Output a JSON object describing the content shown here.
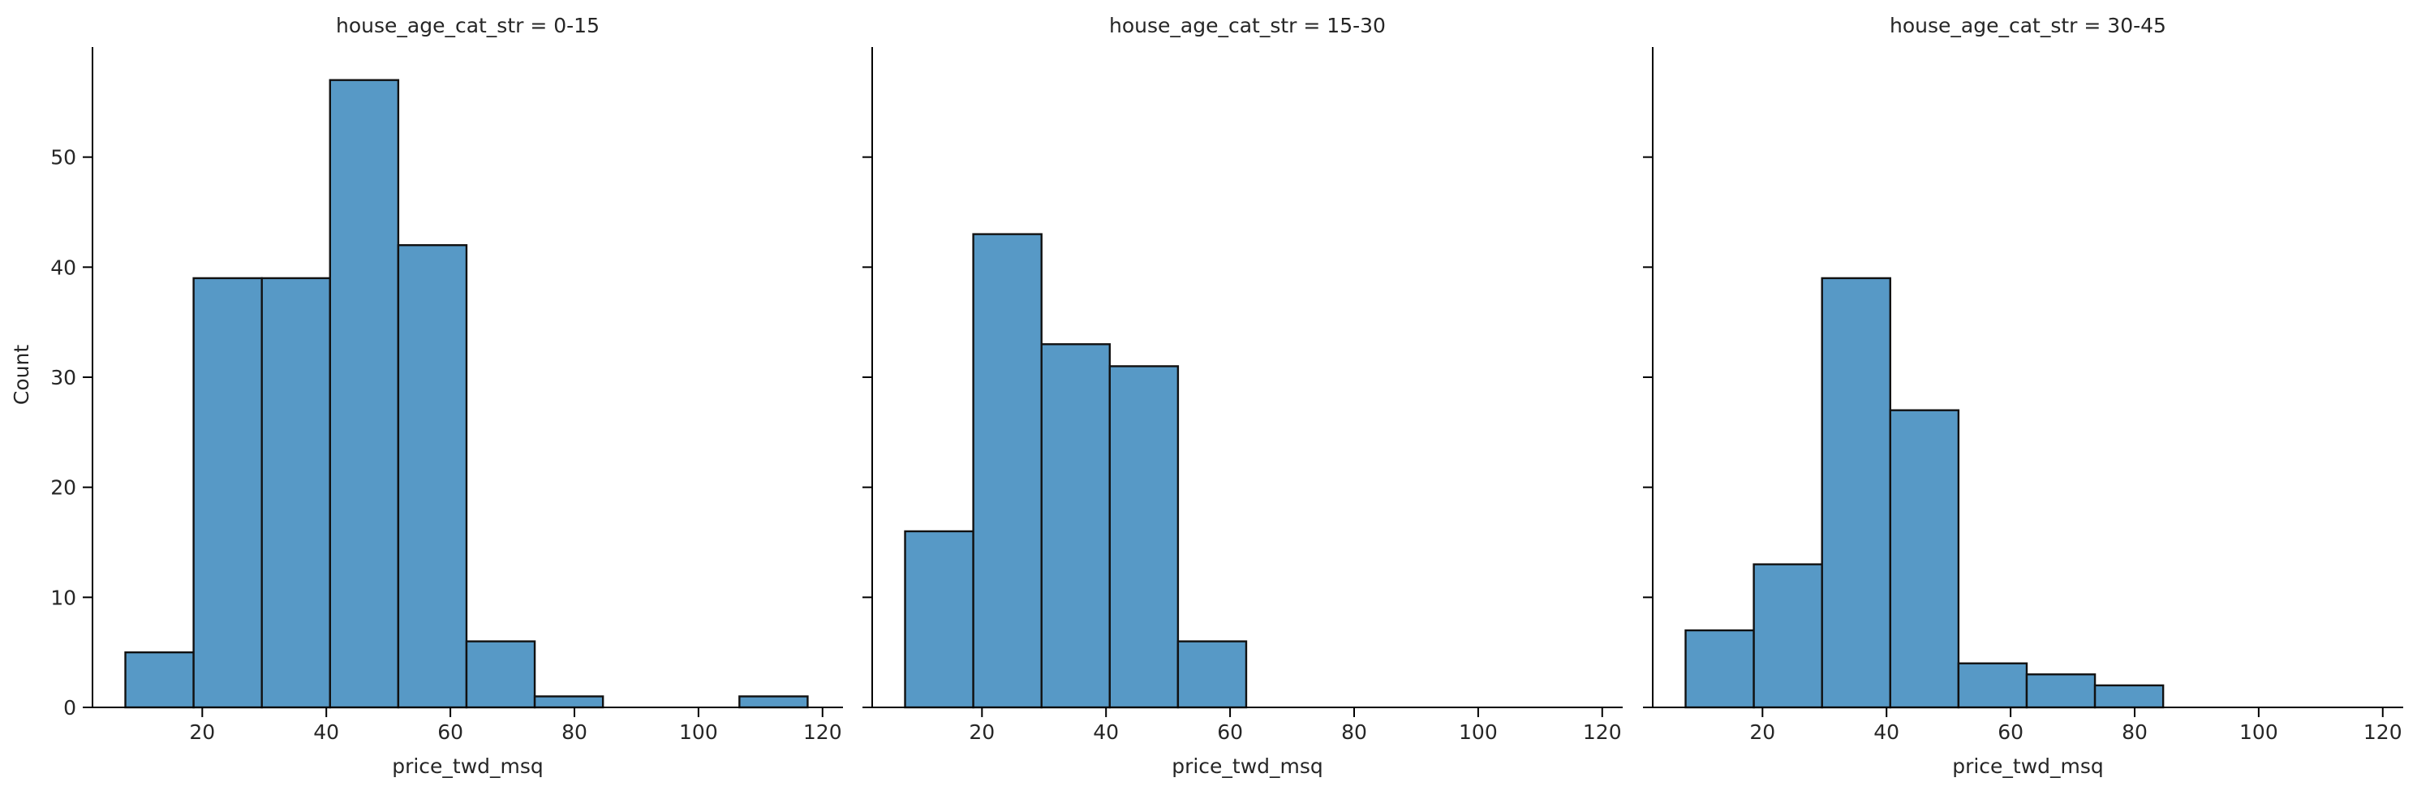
{
  "chart_data": {
    "type": "bar",
    "chart_style": "faceted histogram",
    "shared_y_axis": true,
    "ylabel": "Count",
    "ylim": [
      0,
      60
    ],
    "y_ticks": [
      0,
      10,
      20,
      30,
      40,
      50
    ],
    "xlabel": "price_twd_msq",
    "xlim": [
      2.3,
      123.3
    ],
    "x_ticks": [
      20,
      40,
      60,
      80,
      100,
      120
    ],
    "bin_edges": [
      7.6,
      18.6,
      29.6,
      40.6,
      51.6,
      62.6,
      73.6,
      84.6,
      95.6,
      106.6,
      117.6
    ],
    "grid": false,
    "bar_color": "#5799c6",
    "edge_color": "#111111",
    "panels": [
      {
        "title": "house_age_cat_str = 0-15",
        "counts": [
          5,
          39,
          39,
          57,
          42,
          6,
          1,
          0,
          0,
          1
        ]
      },
      {
        "title": "house_age_cat_str = 15-30",
        "counts": [
          16,
          43,
          33,
          31,
          6,
          0,
          0,
          0,
          0,
          0
        ]
      },
      {
        "title": "house_age_cat_str = 30-45",
        "counts": [
          7,
          13,
          39,
          27,
          4,
          3,
          2,
          0,
          0,
          0
        ]
      }
    ]
  }
}
